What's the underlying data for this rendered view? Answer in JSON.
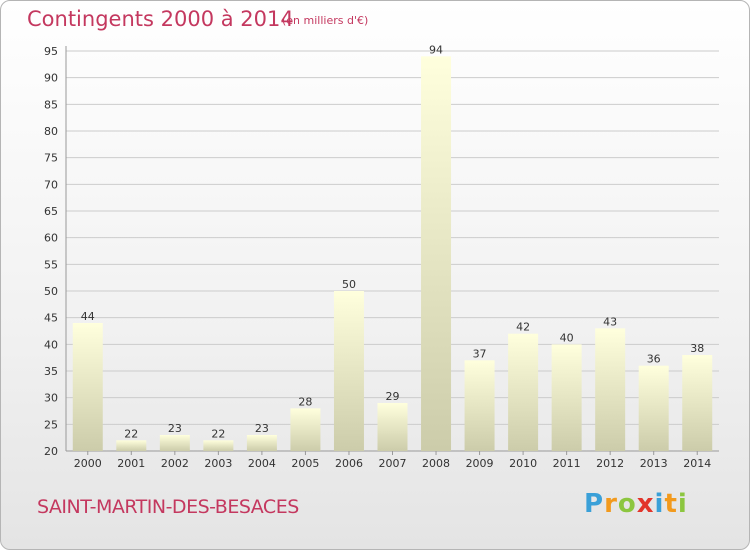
{
  "chart_data": {
    "type": "bar",
    "title": "Contingents 2000 à 2014",
    "subtitle": "(en milliers d'€)",
    "categories": [
      "2000",
      "2001",
      "2002",
      "2003",
      "2004",
      "2005",
      "2006",
      "2007",
      "2008",
      "2009",
      "2010",
      "2011",
      "2012",
      "2013",
      "2014"
    ],
    "values": [
      44,
      22,
      23,
      22,
      23,
      28,
      50,
      29,
      94,
      37,
      42,
      40,
      43,
      36,
      38
    ],
    "ylim": [
      20,
      95
    ],
    "yticks": [
      "20",
      "25",
      "30",
      "35",
      "40",
      "45",
      "50",
      "55",
      "60",
      "65",
      "70",
      "75",
      "80",
      "85",
      "90",
      "95"
    ],
    "grid": true,
    "legend": "none",
    "colors": {
      "bar_light": "#ffffdd",
      "bar_dark": "#ccccaa",
      "grid": "#cccccc",
      "title": "#c4385f"
    }
  },
  "footer": {
    "commune": "SAINT-MARTIN-DES-BESACES",
    "brand_letters": [
      {
        "char": "P",
        "color": "#3aa0d8"
      },
      {
        "char": "r",
        "color": "#f29a1d"
      },
      {
        "char": "o",
        "color": "#8cc63f"
      },
      {
        "char": "x",
        "color": "#e2352b"
      },
      {
        "char": "i",
        "color": "#3aa0d8"
      },
      {
        "char": "t",
        "color": "#f29a1d"
      },
      {
        "char": "i",
        "color": "#8cc63f"
      }
    ]
  }
}
